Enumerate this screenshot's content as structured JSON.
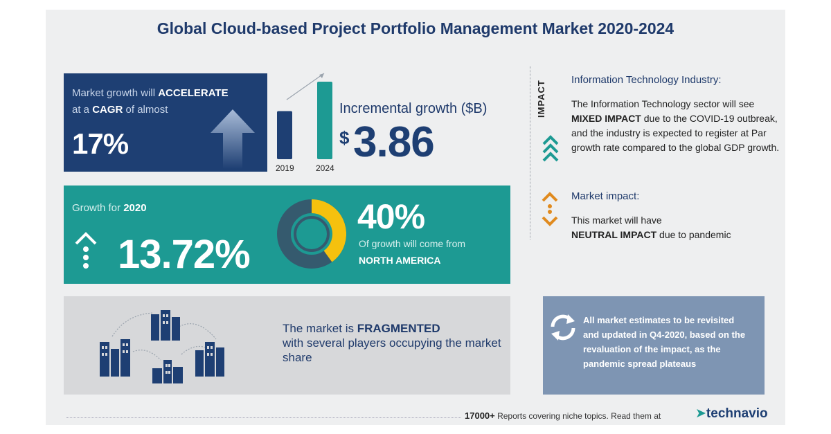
{
  "title": "Global Cloud-based Project Portfolio Management Market 2020-2024",
  "cagr_box": {
    "line1_prefix": "Market growth will ",
    "line1_bold": "ACCELERATE",
    "line2_prefix": "at a ",
    "line2_bold": "CAGR",
    "line2_suffix": " of almost",
    "value": "17%",
    "icon": "up-arrow-icon"
  },
  "bars": {
    "labels": [
      "2019",
      "2024"
    ],
    "values": [
      0.62,
      1.0
    ],
    "colors": [
      "#1e3f73",
      "#1d9a93"
    ]
  },
  "incremental": {
    "label": "Incremental growth ($B)",
    "currency": "$",
    "value": "3.86"
  },
  "growth_box": {
    "label_prefix": "Growth for ",
    "label_bold": "2020",
    "value": "13.72%",
    "share_value": "40%",
    "share_fraction": 0.4,
    "share_desc": "Of growth will come from",
    "share_region": "NORTH AMERICA"
  },
  "frag_box": {
    "text_prefix": "The market is ",
    "text_bold": "FRAGMENTED",
    "text_rest": "with several players occupying the market share"
  },
  "impact": {
    "vertical_label": "IMPACT",
    "it_heading": "Information Technology Industry:",
    "it_body_1": "The Information Technology sector will see ",
    "it_body_bold": "MIXED IMPACT",
    "it_body_2": " due to the COVID-19 outbreak, and the industry is expected to register at Par growth rate compared to the global GDP growth.",
    "mi_heading": "Market impact:",
    "mi_body_1": "This market will have ",
    "mi_body_bold": "NEUTRAL IMPACT",
    "mi_body_2": " due to pandemic"
  },
  "note_box": {
    "text": "All market estimates to be revisited and updated in Q4-2020, based on the revaluation of the impact, as the pandemic spread plateaus"
  },
  "footer": {
    "count": "17000+",
    "text": " Reports covering niche topics. Read them at",
    "brand": "technavio"
  },
  "colors": {
    "navy": "#1e3f73",
    "teal": "#1d9a93",
    "yellow": "#f5c10e",
    "orange": "#e08a1e"
  }
}
